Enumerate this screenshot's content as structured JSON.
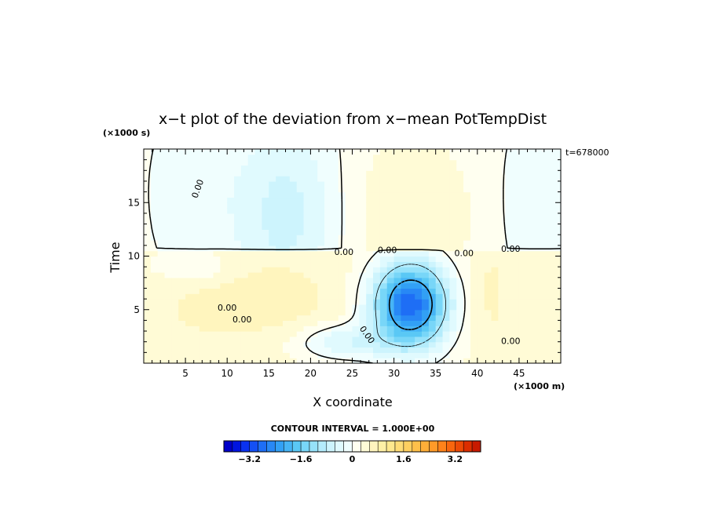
{
  "chart_data": {
    "type": "heatmap",
    "title": "x−t plot of the deviation from x−mean PotTempDist",
    "xlabel": "X coordinate",
    "ylabel": "Time",
    "x_unit": "(×1000 m)",
    "y_unit": "(×1000 s)",
    "time_label": "t=678000",
    "xlim": [
      0,
      50
    ],
    "ylim": [
      0,
      20
    ],
    "x_ticks": [
      5,
      10,
      15,
      20,
      25,
      30,
      35,
      40,
      45
    ],
    "y_ticks": [
      5,
      10,
      15
    ],
    "grid": false,
    "contour_interval_text": "CONTOUR INTERVAL = 1.000E+00",
    "contour_labels": [
      "0.00",
      "0.00",
      "0.00",
      "0.00",
      "0.00",
      "0.00",
      "0.00",
      "0.00",
      "0.00"
    ],
    "features": [
      {
        "kind": "cold_vortex",
        "x": 32,
        "y": 5.5,
        "min_value": -3.0
      },
      {
        "kind": "warm_band",
        "x_range": [
          0,
          40
        ],
        "y_range": [
          1.5,
          10.5
        ],
        "value": 0.5
      },
      {
        "kind": "cold_upper_left",
        "x_range": [
          10,
          28
        ],
        "y_range": [
          10.5,
          20
        ],
        "value": -0.6
      },
      {
        "kind": "warm_upper_center",
        "x_range": [
          24,
          40
        ],
        "y_range": [
          10.5,
          20
        ],
        "value": 0.4
      }
    ],
    "colorbar": {
      "min": -4.0,
      "max": 4.0,
      "tick_values": [
        -3.2,
        -1.6,
        0,
        1.6,
        3.2
      ],
      "tick_labels": [
        "−3.2",
        "−1.6",
        "0",
        "1.6",
        "3.2"
      ],
      "colors": [
        "#0000c8",
        "#0014e0",
        "#0a32f0",
        "#1450f5",
        "#1e6ef5",
        "#2888f5",
        "#32a0f5",
        "#46b4f5",
        "#5ac8f5",
        "#78d6f8",
        "#96e2fa",
        "#b4ecfc",
        "#cdf4fd",
        "#e0fafe",
        "#f0fefe",
        "#fffff0",
        "#fffbd6",
        "#fff5be",
        "#fff0a6",
        "#ffe88e",
        "#ffdc76",
        "#ffcf60",
        "#ffc04a",
        "#ffae38",
        "#ff9a28",
        "#ff821a",
        "#f8660e",
        "#ec4a06",
        "#dc2e00",
        "#c81a00"
      ]
    }
  }
}
